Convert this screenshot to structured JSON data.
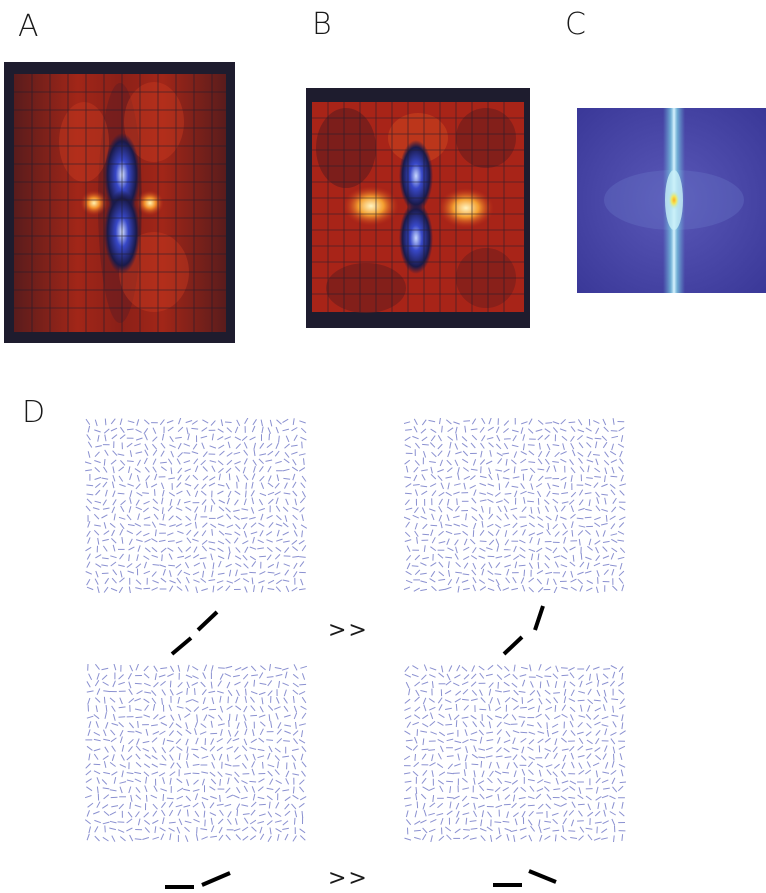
{
  "figure": {
    "panels": [
      {
        "id": "A",
        "label": "A"
      },
      {
        "id": "B",
        "label": "B"
      },
      {
        "id": "C",
        "label": "C"
      },
      {
        "id": "D",
        "label": "D"
      }
    ],
    "comparisons": [
      {
        "symbol": ">>"
      },
      {
        "symbol": ">>"
      }
    ]
  },
  "colors": {
    "heatmap_dark": "#1e1c2e",
    "heatmap_red": "#b42418",
    "heatmap_hot": "#ffe9a0",
    "heatmap_blue": "#3848c8",
    "spectrum_bg": "#4a45a8",
    "spectrum_line": "#a8e8f0",
    "texture_line": "#8a90d0",
    "contour_segment": "#000000"
  }
}
